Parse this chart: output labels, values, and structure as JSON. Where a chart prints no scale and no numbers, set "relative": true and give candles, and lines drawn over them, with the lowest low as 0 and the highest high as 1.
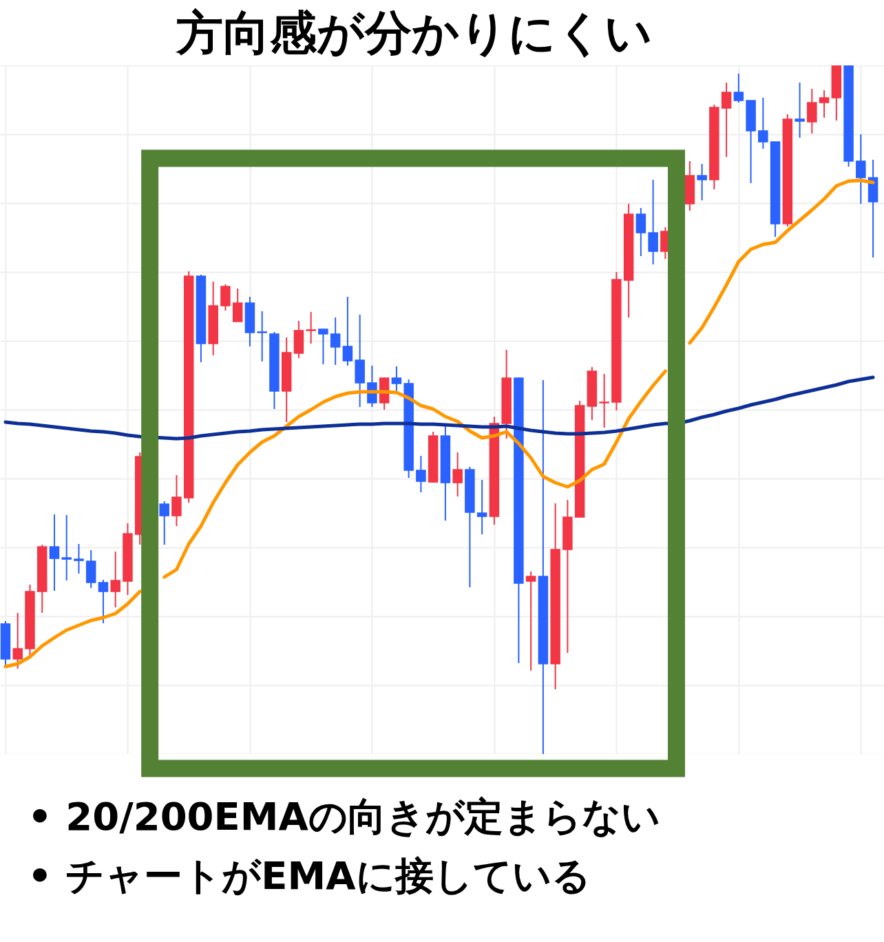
{
  "chart_data": {
    "type": "candlestick",
    "title": "方向感が分かりにくい",
    "relative": true,
    "grid": true,
    "annotations": [
      "• 20/200EMAの向きが定まらない",
      "• チャートがEMAに接している"
    ],
    "categories": [
      null,
      null,
      null,
      null,
      null,
      null,
      null,
      null,
      null,
      null,
      null,
      null,
      null,
      null,
      null,
      null,
      null,
      null,
      null,
      null,
      null,
      null,
      null,
      null,
      null,
      null,
      null,
      null,
      null,
      null,
      null,
      null,
      null,
      null,
      null,
      null,
      null,
      null,
      null,
      null,
      null,
      null,
      null,
      null,
      null,
      null,
      null,
      null,
      null,
      null,
      null,
      null,
      null,
      null,
      null,
      null,
      null,
      null,
      null,
      null,
      null,
      null,
      null,
      null,
      null,
      null,
      null,
      null,
      null,
      null,
      null,
      null
    ],
    "ohlc": [
      [
        0.189,
        0.193,
        0.128,
        0.138
      ],
      [
        0.138,
        0.205,
        0.124,
        0.153
      ],
      [
        0.153,
        0.246,
        0.143,
        0.236
      ],
      [
        0.236,
        0.304,
        0.205,
        0.301
      ],
      [
        0.301,
        0.348,
        0.237,
        0.284
      ],
      [
        0.285,
        0.347,
        0.252,
        0.283
      ],
      [
        0.283,
        0.305,
        0.262,
        0.281
      ],
      [
        0.28,
        0.296,
        0.241,
        0.249
      ],
      [
        0.249,
        0.253,
        0.19,
        0.236
      ],
      [
        0.236,
        0.294,
        0.213,
        0.252
      ],
      [
        0.251,
        0.335,
        0.231,
        0.32
      ],
      [
        0.319,
        0.438,
        0.304,
        0.432
      ],
      null,
      [
        0.363,
        0.367,
        0.304,
        0.346
      ],
      [
        0.346,
        0.405,
        0.331,
        0.373
      ],
      [
        0.372,
        0.701,
        0.365,
        0.694
      ],
      [
        0.694,
        0.696,
        0.569,
        0.596
      ],
      [
        0.596,
        0.686,
        0.579,
        0.651
      ],
      [
        0.651,
        0.682,
        0.644,
        0.679
      ],
      [
        0.628,
        0.676,
        0.628,
        0.655
      ],
      [
        0.655,
        0.664,
        0.592,
        0.612
      ],
      [
        0.613,
        0.643,
        0.57,
        0.612
      ],
      [
        0.61,
        0.613,
        0.501,
        0.527
      ],
      [
        0.527,
        0.605,
        0.482,
        0.583
      ],
      [
        0.582,
        0.629,
        0.575,
        0.615
      ],
      [
        0.615,
        0.642,
        0.596,
        0.616
      ],
      [
        0.617,
        0.617,
        0.566,
        0.61
      ],
      [
        0.61,
        0.634,
        0.565,
        0.591
      ],
      [
        0.592,
        0.664,
        0.564,
        0.571
      ],
      [
        0.572,
        0.638,
        0.504,
        0.539
      ],
      [
        0.539,
        0.564,
        0.504,
        0.51
      ],
      [
        0.51,
        0.547,
        0.5,
        0.546
      ],
      [
        0.546,
        0.563,
        0.525,
        0.538
      ],
      [
        0.538,
        0.544,
        0.401,
        0.412
      ],
      [
        0.412,
        0.433,
        0.38,
        0.396
      ],
      [
        0.395,
        0.468,
        0.394,
        0.462
      ],
      [
        0.462,
        0.476,
        0.339,
        0.394
      ],
      [
        0.394,
        0.438,
        0.374,
        0.413
      ],
      [
        0.413,
        0.417,
        0.242,
        0.351
      ],
      [
        0.35,
        0.398,
        0.319,
        0.345
      ],
      [
        0.345,
        0.49,
        0.333,
        0.48
      ],
      [
        0.48,
        0.587,
        0.458,
        0.546
      ],
      [
        0.546,
        0.547,
        0.132,
        0.248
      ],
      [
        0.251,
        0.265,
        0.121,
        0.258
      ],
      [
        0.258,
        0.543,
        0,
        0.131
      ],
      [
        0.131,
        0.364,
        0.094,
        0.297
      ],
      [
        0.297,
        0.369,
        0.147,
        0.344
      ],
      [
        0.344,
        0.513,
        0.344,
        0.506
      ],
      [
        0.505,
        0.562,
        0.485,
        0.556
      ],
      [
        0.51,
        0.552,
        0.474,
        0.511
      ],
      [
        0.511,
        0.7,
        0.499,
        0.689
      ],
      [
        0.688,
        0.799,
        0.634,
        0.784
      ],
      [
        0.784,
        0.793,
        0.723,
        0.757
      ],
      [
        0.757,
        0.834,
        0.711,
        0.73
      ],
      [
        0.73,
        0.765,
        0.719,
        0.759
      ],
      null,
      [
        0.799,
        0.861,
        0.789,
        0.84
      ],
      [
        0.84,
        0.857,
        0.804,
        0.834
      ],
      [
        0.834,
        0.943,
        0.82,
        0.939
      ],
      [
        0.938,
        0.975,
        0.867,
        0.961
      ],
      [
        0.961,
        0.988,
        0.946,
        0.949
      ],
      [
        0.949,
        0.949,
        0.829,
        0.905
      ],
      [
        0.905,
        0.953,
        0.879,
        0.889
      ],
      [
        0.889,
        0.889,
        0.751,
        0.77
      ],
      [
        0.77,
        0.929,
        0.766,
        0.922
      ],
      [
        0.922,
        0.975,
        0.895,
        0.919
      ],
      [
        0.918,
        0.966,
        0.901,
        0.946
      ],
      [
        0.946,
        0.964,
        0.924,
        0.953
      ],
      [
        0.953,
        1,
        0.92,
        1
      ],
      [
        1,
        1,
        0.853,
        0.861
      ],
      [
        0.861,
        0.9,
        0.799,
        0.837
      ],
      [
        0.837,
        0.863,
        0.721,
        0.802
      ]
    ],
    "colors": [
      "#2962ff",
      "#f23645",
      "#f23645",
      "#f23645",
      "#2962ff",
      "#2962ff",
      "#2962ff",
      "#2962ff",
      "#2962ff",
      "#f23645",
      "#f23645",
      "#f23645",
      null,
      "#2962ff",
      "#f23645",
      "#f23645",
      "#2962ff",
      "#f23645",
      "#f23645",
      "#f23645",
      "#2962ff",
      "#2962ff",
      "#2962ff",
      "#f23645",
      "#f23645",
      "#f23645",
      "#2962ff",
      "#2962ff",
      "#2962ff",
      "#2962ff",
      "#2962ff",
      "#f23645",
      "#2962ff",
      "#2962ff",
      "#2962ff",
      "#f23645",
      "#2962ff",
      "#f23645",
      "#2962ff",
      "#2962ff",
      "#f23645",
      "#f23645",
      "#2962ff",
      "#f23645",
      "#2962ff",
      "#f23645",
      "#f23645",
      "#f23645",
      "#f23645",
      "#f23645",
      "#f23645",
      "#f23645",
      "#2962ff",
      "#2962ff",
      "#f23645",
      null,
      "#f23645",
      "#2962ff",
      "#f23645",
      "#f23645",
      "#2962ff",
      "#2962ff",
      "#2962ff",
      "#2962ff",
      "#f23645",
      "#2962ff",
      "#f23645",
      "#f23645",
      "#f23645",
      "#2962ff",
      "#2962ff",
      "#2962ff"
    ],
    "series": [
      {
        "type": "line",
        "color": "#ff9800",
        "values": [
          0.127,
          0.131,
          0.141,
          0.157,
          0.169,
          0.18,
          0.187,
          0.194,
          0.198,
          0.204,
          0.218,
          0.236,
          null,
          0.257,
          0.268,
          0.305,
          0.331,
          0.365,
          0.394,
          0.42,
          0.438,
          0.453,
          0.462,
          0.476,
          0.49,
          0.5,
          0.511,
          0.519,
          0.524,
          0.526,
          0.526,
          0.526,
          0.525,
          0.517,
          0.506,
          0.501,
          0.49,
          0.483,
          0.469,
          0.459,
          0.462,
          0.468,
          0.451,
          0.43,
          0.403,
          0.394,
          0.388,
          0.397,
          0.413,
          0.421,
          0.453,
          0.487,
          0.512,
          0.535,
          0.556,
          null,
          0.597,
          0.619,
          0.649,
          0.681,
          0.715,
          0.733,
          0.74,
          0.743,
          0.76,
          0.775,
          0.79,
          0.806,
          0.825,
          0.832,
          0.833,
          0.83
        ]
      },
      {
        "type": "line",
        "color": "#0d2f96",
        "values": [
          0.482,
          0.48,
          0.479,
          0.477,
          0.475,
          0.473,
          0.471,
          0.469,
          0.468,
          0.466,
          0.463,
          0.461,
          0.46,
          0.459,
          0.458,
          0.459,
          0.462,
          0.464,
          0.466,
          0.468,
          0.469,
          0.471,
          0.472,
          0.473,
          0.474,
          0.475,
          0.476,
          0.477,
          0.478,
          0.479,
          0.479,
          0.48,
          0.48,
          0.48,
          0.479,
          0.479,
          0.478,
          0.477,
          0.476,
          0.475,
          0.475,
          0.476,
          0.473,
          0.47,
          0.468,
          0.466,
          0.465,
          0.465,
          0.466,
          0.467,
          0.469,
          0.472,
          0.475,
          0.478,
          0.48,
          0.48,
          0.484,
          0.489,
          0.493,
          0.498,
          0.502,
          0.507,
          0.511,
          0.515,
          0.52,
          0.524,
          0.528,
          0.532,
          0.536,
          0.541,
          0.544,
          0.547
        ]
      }
    ]
  }
}
